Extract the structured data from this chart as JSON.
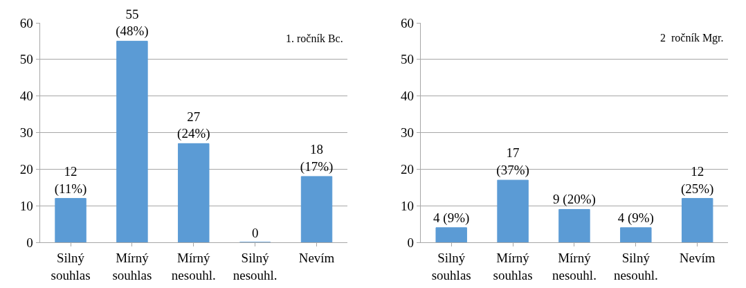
{
  "chart_data": [
    {
      "type": "bar",
      "categories": [
        "Silný souhlas",
        "Mírný souhlas",
        "Mírný nesouhl.",
        "Silný nesouhl.",
        "Nevím"
      ],
      "values": [
        12,
        55,
        27,
        0,
        18
      ],
      "color": "#5b9bd5",
      "value_labels": [
        "12\n(11%)",
        "55\n(48%)",
        "27\n(24%)",
        "0",
        "18\n(17%)"
      ],
      "ylim": [
        0,
        60
      ],
      "yticks": [
        0,
        10,
        20,
        30,
        40,
        50,
        60
      ],
      "grid": "y",
      "annotations": [
        "1. ročník Bc."
      ]
    },
    {
      "type": "bar",
      "categories": [
        "Silný souhlas",
        "Mírný souhlas",
        "Mírný nesouhl.",
        "Silný nesouhl.",
        "Nevím"
      ],
      "values": [
        4,
        17,
        9,
        4,
        12
      ],
      "color": "#5b9bd5",
      "value_labels": [
        "4 (9%)",
        "17\n(37%)",
        "9 (20%)",
        "4 (9%)",
        "12\n(25%)"
      ],
      "ylim": [
        0,
        60
      ],
      "yticks": [
        0,
        10,
        20,
        30,
        40,
        50,
        60
      ],
      "grid": "y",
      "annotations": [
        "2  ročník Mgr."
      ]
    }
  ]
}
